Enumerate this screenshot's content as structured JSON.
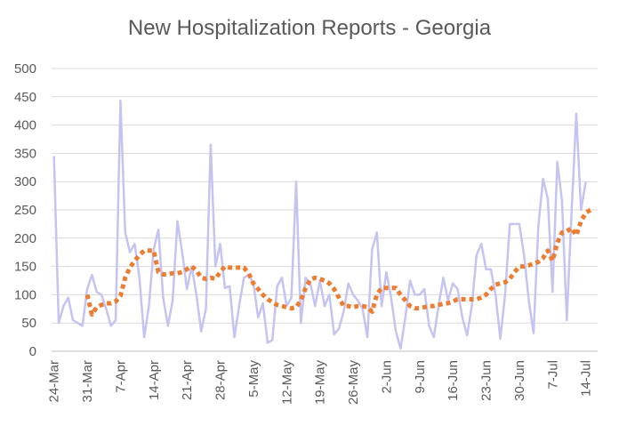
{
  "chart_data": {
    "type": "line",
    "title": "New Hospitalization Reports - Georgia",
    "xlabel": "",
    "ylabel": "",
    "ylim": [
      0,
      500
    ],
    "yticks": [
      0,
      50,
      100,
      150,
      200,
      250,
      300,
      350,
      400,
      450,
      500
    ],
    "xtick_labels": [
      "24-Mar",
      "31-Mar",
      "7-Apr",
      "14-Apr",
      "21-Apr",
      "28-Apr",
      "5-May",
      "12-May",
      "19-May",
      "26-May",
      "2-Jun",
      "9-Jun",
      "16-Jun",
      "23-Jun",
      "30-Jun",
      "7-Jul",
      "14-Jul"
    ],
    "grid": "horizontal",
    "legend": "none",
    "colors": {
      "daily": "#c5c3f2",
      "average": "#ed7d31",
      "grid": "#d9d9d9",
      "axis": "#bfbfbf",
      "text": "#595959"
    },
    "series": [
      {
        "style": "solid-line",
        "x_start": "24-Mar",
        "x_step_days": 1,
        "values": [
          345,
          50,
          80,
          95,
          55,
          50,
          45,
          110,
          135,
          105,
          100,
          75,
          45,
          55,
          443,
          210,
          175,
          190,
          130,
          25,
          80,
          180,
          215,
          95,
          45,
          90,
          230,
          175,
          110,
          150,
          100,
          35,
          75,
          365,
          150,
          190,
          112,
          115,
          25,
          80,
          130,
          135,
          120,
          60,
          85,
          15,
          20,
          115,
          130,
          80,
          95,
          300,
          50,
          130,
          120,
          80,
          125,
          80,
          100,
          30,
          40,
          70,
          120,
          100,
          90,
          75,
          25,
          180,
          210,
          80,
          140,
          95,
          35,
          5,
          60,
          125,
          100,
          100,
          110,
          45,
          25,
          80,
          130,
          90,
          120,
          110,
          60,
          28,
          80,
          170,
          190,
          145,
          145,
          100,
          22,
          100,
          225,
          225,
          225,
          170,
          90,
          32,
          220,
          305,
          270,
          105,
          335,
          265,
          55,
          245,
          420,
          250,
          300
        ]
      },
      {
        "style": "dotted-line",
        "x_start": "31-Mar",
        "x_step_days": 1,
        "values": [
          100,
          65,
          78,
          82,
          85,
          85,
          88,
          98,
          130,
          148,
          160,
          170,
          178,
          178,
          178,
          140,
          136,
          136,
          138,
          138,
          140,
          145,
          150,
          143,
          130,
          128,
          130,
          128,
          140,
          150,
          148,
          148,
          148,
          148,
          138,
          120,
          110,
          100,
          92,
          87,
          82,
          80,
          78,
          76,
          78,
          90,
          112,
          127,
          130,
          128,
          125,
          120,
          110,
          95,
          80,
          80,
          78,
          80,
          80,
          78,
          70,
          100,
          112,
          112,
          112,
          112,
          100,
          90,
          80,
          76,
          76,
          78,
          80,
          80,
          82,
          84,
          85,
          88,
          92,
          92,
          92,
          92,
          92,
          95,
          100,
          110,
          118,
          120,
          122,
          128,
          140,
          150,
          150,
          152,
          155,
          158,
          165,
          178,
          160,
          192,
          210,
          212,
          218,
          205,
          230,
          245,
          250
        ]
      }
    ]
  }
}
